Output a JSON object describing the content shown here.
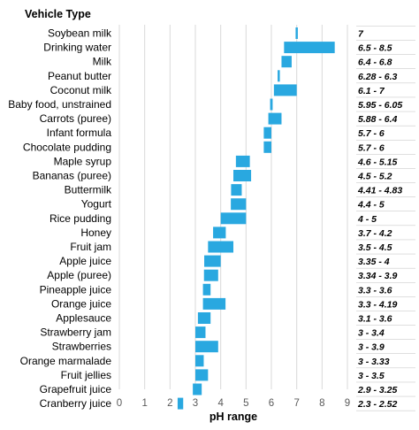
{
  "chart_data": {
    "type": "bar",
    "subtype": "floating-range-horizontal",
    "category_header": "Vehicle Type",
    "xlabel": "pH range",
    "xlim": [
      0,
      9
    ],
    "xticks": [
      0,
      1,
      2,
      3,
      4,
      5,
      6,
      7,
      8,
      9
    ],
    "grid": true,
    "bar_color": "#29a8e0",
    "categories": [
      "Soybean milk",
      "Drinking water",
      "Milk",
      "Peanut butter",
      "Coconut milk",
      "Baby food, unstrained",
      "Carrots (puree)",
      "Infant formula",
      "Chocolate pudding",
      "Maple syrup",
      "Bananas (puree)",
      "Buttermilk",
      "Yogurt",
      "Rice pudding",
      "Honey",
      "Fruit jam",
      "Apple juice",
      "Apple (puree)",
      "Pineapple juice",
      "Orange juice",
      "Applesauce",
      "Strawberry jam",
      "Strawberries",
      "Orange marmalade",
      "Fruit jellies",
      "Grapefruit juice",
      "Cranberry juice"
    ],
    "ranges": [
      [
        7,
        7
      ],
      [
        6.5,
        8.5
      ],
      [
        6.4,
        6.8
      ],
      [
        6.28,
        6.3
      ],
      [
        6.1,
        7
      ],
      [
        5.95,
        6.05
      ],
      [
        5.88,
        6.4
      ],
      [
        5.7,
        6
      ],
      [
        5.7,
        6
      ],
      [
        4.6,
        5.15
      ],
      [
        4.5,
        5.2
      ],
      [
        4.41,
        4.83
      ],
      [
        4.4,
        5
      ],
      [
        4,
        5
      ],
      [
        3.7,
        4.2
      ],
      [
        3.5,
        4.5
      ],
      [
        3.35,
        4
      ],
      [
        3.34,
        3.9
      ],
      [
        3.3,
        3.6
      ],
      [
        3.3,
        4.19
      ],
      [
        3.1,
        3.6
      ],
      [
        3,
        3.4
      ],
      [
        3,
        3.9
      ],
      [
        3,
        3.33
      ],
      [
        3,
        3.5
      ],
      [
        2.9,
        3.25
      ],
      [
        2.3,
        2.52
      ]
    ],
    "range_labels": [
      "7",
      "6.5 - 8.5",
      "6.4 - 6.8",
      "6.28 - 6.3",
      "6.1 - 7",
      "5.95 - 6.05",
      "5.88 - 6.4",
      "5.7 - 6",
      "5.7 - 6",
      "4.6 - 5.15",
      "4.5 - 5.2",
      "4.41 - 4.83",
      "4.4 - 5",
      "4 - 5",
      "3.7 - 4.2",
      "3.5 - 4.5",
      "3.35 - 4",
      "3.34 - 3.9",
      "3.3 - 3.6",
      "3.3 - 4.19",
      "3.1 - 3.6",
      "3 - 3.4",
      "3 - 3.9",
      "3 - 3.33",
      "3 - 3.5",
      "2.9 - 3.25",
      "2.3 - 2.52"
    ]
  }
}
